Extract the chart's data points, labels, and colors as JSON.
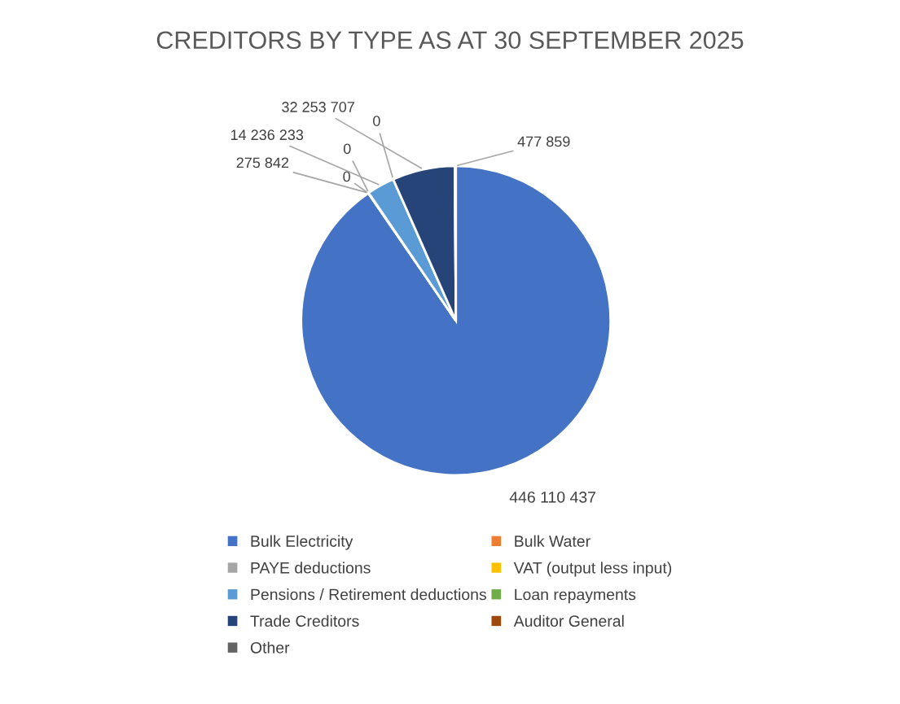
{
  "chart_data": {
    "type": "pie",
    "title": "CREDITORS BY TYPE AS AT 30 SEPTEMBER 2025",
    "categories": [
      "Bulk Electricity",
      "Bulk Water",
      "PAYE deductions",
      "VAT (output less input)",
      "Pensions / Retirement deductions",
      "Loan repayments",
      "Trade Creditors",
      "Auditor General",
      "Other"
    ],
    "values": [
      446110437,
      0,
      275842,
      0,
      14236233,
      0,
      32253707,
      0,
      477859
    ],
    "colors": [
      "#4472c4",
      "#ed7d31",
      "#a5a5a5",
      "#ffc000",
      "#5b9bd5",
      "#70ad47",
      "#264478",
      "#9e480e",
      "#636363"
    ],
    "value_labels": [
      "446 110 437",
      "0",
      "275 842",
      "0",
      "14 236 233",
      "0",
      "32 253 707",
      null,
      "477 859"
    ],
    "legend": "bottom"
  }
}
